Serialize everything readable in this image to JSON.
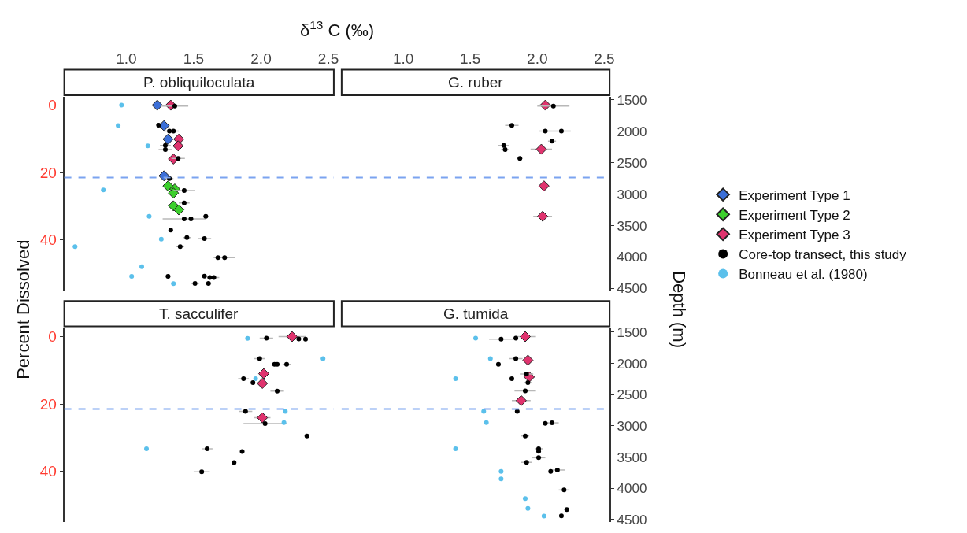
{
  "chart_data": [
    {
      "type": "scatter",
      "title": "P. obliquiloculata",
      "xlabel": "δ$^{13}$ C (‰)",
      "ylabel": "Percent Dissolved",
      "legend": "right",
      "xlim": [
        0.54,
        2.54
      ],
      "xticks": [
        {
          "value": 1,
          "label": "1.0"
        },
        {
          "value": 1.5,
          "label": "1.5"
        },
        {
          "value": 2,
          "label": "2.0"
        },
        {
          "value": 2.5,
          "label": "2.5"
        }
      ],
      "ylim": [
        55.4,
        -2.5
      ],
      "yticks": [
        0,
        20,
        40
      ],
      "y2lim": [
        4550,
        1450
      ],
      "tick_labels": [
        "x",
        "y"
      ],
      "ref_lines": [
        {
          "axis": "y",
          "value": 21.5,
          "color": "#7ba3f0",
          "line_style": "dashed"
        }
      ],
      "series": [
        {
          "name": "Experiment Type 1",
          "color": "#3b6fd8",
          "marker": "diamond",
          "x": [
            1.23,
            1.28,
            1.31,
            1.28
          ],
          "values": [
            0,
            6.1,
            10.1,
            21.0
          ]
        },
        {
          "name": "Experiment Type 2",
          "color": "#3ccf2c",
          "marker": "diamond",
          "x": [
            1.31,
            1.36,
            1.35,
            1.35,
            1.39
          ],
          "values": [
            24,
            24.9,
            26.1,
            29.9,
            31.1
          ]
        },
        {
          "name": "Experiment Type 3",
          "color": "#e0336e",
          "marker": "diamond",
          "x": [
            1.33,
            1.39,
            1.385,
            1.35
          ],
          "values": [
            0,
            10.1,
            12.1,
            16.0
          ]
        },
        {
          "name": "Core-top transect, this study",
          "color": "#000000",
          "marker": "circle",
          "axis": "y2",
          "x": [
            1.36,
            1.24,
            1.32,
            1.35,
            1.29,
            1.29,
            1.385,
            1.32,
            1.43,
            1.43,
            1.59,
            1.43,
            1.48,
            1.33,
            1.45,
            1.58,
            1.4,
            1.68,
            1.73,
            1.31,
            1.58,
            1.62,
            1.65,
            1.51,
            1.61
          ],
          "values": [
            1598,
            1902,
            1996,
            1996,
            2226,
            2291,
            2431,
            2751,
            2943,
            3140,
            3353,
            3394,
            3394,
            3570,
            3689,
            3706,
            3833,
            4009,
            4009,
            4308,
            4304,
            4325,
            4325,
            4419,
            4419
          ],
          "xerrors": [
            0.1,
            0.02,
            0.04,
            0.04,
            0.04,
            0.05,
            0.05,
            0.03,
            0.08,
            0.04,
            0.02,
            0.16,
            0.02,
            0.01,
            0.03,
            0.05,
            0.03,
            0.03,
            0.08,
            0.02,
            0.02,
            0.02,
            0.04,
            0.03,
            0.02
          ]
        },
        {
          "name": "Bonneau et al. (1980)",
          "color": "#5bc0eb",
          "marker": "circle",
          "axis": "y2",
          "x": [
            0.965,
            0.94,
            1.16,
            0.83,
            1.17,
            1.26,
            0.62,
            1.115,
            1.04,
            1.35
          ],
          "values": [
            1582,
            1910,
            2230,
            2931,
            3353,
            3714,
            3833,
            4153,
            4308,
            4423
          ]
        }
      ]
    },
    {
      "type": "scatter",
      "title": "G. ruber",
      "y2label": "Depth (m)",
      "xlim": [
        0.54,
        2.54
      ],
      "xticks": [
        {
          "value": 1,
          "label": "1.0"
        },
        {
          "value": 1.5,
          "label": "1.5"
        },
        {
          "value": 2,
          "label": "2.0"
        },
        {
          "value": 2.5,
          "label": "2.5"
        }
      ],
      "ylim": [
        55.4,
        -2.5
      ],
      "y2lim": [
        4550,
        1450
      ],
      "y2ticks": [
        1500,
        2000,
        2500,
        3000,
        3500,
        4000,
        4500
      ],
      "tick_labels": [
        "x",
        "y2"
      ],
      "ref_lines": [
        {
          "axis": "y",
          "value": 21.5,
          "color": "#7ba3f0",
          "line_style": "dashed"
        }
      ],
      "series": [
        {
          "color": "#e0336e",
          "marker": "diamond",
          "x": [
            2.06,
            2.03,
            2.05,
            2.04
          ],
          "values": [
            0,
            13.1,
            24.0,
            33.0
          ],
          "xerrors": [
            0.05,
            0.08,
            null,
            0.07
          ]
        },
        {
          "color": "#000000",
          "marker": "circle",
          "axis": "y2",
          "x": [
            2.12,
            1.81,
            2.06,
            2.18,
            2.11,
            1.75,
            1.76,
            1.87
          ],
          "values": [
            1598,
            1906,
            1996,
            1996,
            2156,
            2226,
            2291,
            2431
          ],
          "xerrors": [
            0.12,
            0.05,
            0.05,
            0.07,
            0.03,
            0.04,
            0.03,
            0.02
          ]
        }
      ]
    },
    {
      "type": "scatter",
      "title": "T. sacculifer",
      "xlim": [
        0.54,
        2.54
      ],
      "ylim": [
        55.1,
        -2.8
      ],
      "yticks": [
        0,
        20,
        40
      ],
      "y2lim": [
        4540,
        1420
      ],
      "tick_labels": [
        "y"
      ],
      "ref_lines": [
        {
          "axis": "y",
          "value": 21.5,
          "color": "#7ba3f0",
          "line_style": "dashed"
        }
      ],
      "series": [
        {
          "color": "#e0336e",
          "marker": "diamond",
          "x": [
            2.23,
            2.02,
            2.01,
            2.01
          ],
          "values": [
            0,
            11.0,
            13.9,
            24.1
          ],
          "xerrors": [
            0.1,
            null,
            null,
            0.06
          ]
        },
        {
          "color": "#000000",
          "marker": "circle",
          "axis": "y2",
          "x": [
            2.04,
            2.28,
            2.33,
            1.99,
            2.1,
            2.12,
            2.19,
            1.87,
            1.94,
            2.12,
            1.885,
            2.03,
            2.34,
            1.6,
            1.86,
            1.8,
            1.56
          ],
          "values": [
            1594,
            1607,
            1611,
            1922,
            2013,
            2013,
            2013,
            2246,
            2308,
            2443,
            2767,
            2964,
            3160,
            3366,
            3411,
            3587,
            3735
          ],
          "xerrors": [
            0.05,
            null,
            null,
            0.04,
            null,
            null,
            0.03,
            0.04,
            null,
            0.05,
            0.05,
            0.16,
            null,
            0.04,
            null,
            null,
            0.06
          ]
        },
        {
          "color": "#5bc0eb",
          "marker": "circle",
          "axis": "y2",
          "x": [
            1.9,
            2.46,
            1.96,
            2.18,
            2.17,
            1.15
          ],
          "values": [
            1598,
            1922,
            2246,
            2767,
            2947,
            3366
          ]
        }
      ]
    },
    {
      "type": "scatter",
      "title": "G. tumida",
      "xlim": [
        0.54,
        2.54
      ],
      "ylim": [
        55.1,
        -2.8
      ],
      "y2lim": [
        4540,
        1420
      ],
      "y2ticks": [
        1500,
        2000,
        2500,
        3000,
        3500,
        4000,
        4500
      ],
      "tick_labels": [
        "y2"
      ],
      "ref_lines": [
        {
          "axis": "y",
          "value": 21.5,
          "color": "#7ba3f0",
          "line_style": "dashed"
        }
      ],
      "series": [
        {
          "color": "#e0336e",
          "marker": "diamond",
          "x": [
            1.91,
            1.93,
            1.94,
            1.88
          ],
          "values": [
            0,
            7.0,
            12.0,
            19.0
          ],
          "xerrors": [
            0.08,
            null,
            0.04,
            0.07
          ]
        },
        {
          "color": "#000000",
          "marker": "circle",
          "axis": "y2",
          "x": [
            1.73,
            1.84,
            1.84,
            1.71,
            1.92,
            1.81,
            1.93,
            1.91,
            1.85,
            2.06,
            2.11,
            1.91,
            2.01,
            2.01,
            2.01,
            1.92,
            2.1,
            2.15,
            2.2,
            2.22,
            2.18
          ],
          "values": [
            1611,
            1594,
            1922,
            2013,
            2168,
            2246,
            2308,
            2439,
            2767,
            2960,
            2951,
            3160,
            3366,
            3407,
            3509,
            3583,
            3730,
            3706,
            4026,
            4341,
            4440
          ],
          "xerrors": [
            0.09,
            null,
            0.05,
            null,
            0.05,
            null,
            0.03,
            0.08,
            null,
            null,
            0.05,
            0.03,
            0.03,
            null,
            0.05,
            0.04,
            null,
            0.06,
            0.04,
            null,
            null
          ]
        },
        {
          "color": "#5bc0eb",
          "marker": "circle",
          "axis": "y2",
          "x": [
            1.54,
            1.65,
            1.39,
            1.6,
            1.62,
            1.39,
            1.73,
            1.73,
            1.91,
            1.93,
            2.05
          ],
          "values": [
            1594,
            1922,
            2246,
            2767,
            2947,
            3366,
            3730,
            3849,
            4165,
            4321,
            4444
          ]
        }
      ]
    }
  ]
}
